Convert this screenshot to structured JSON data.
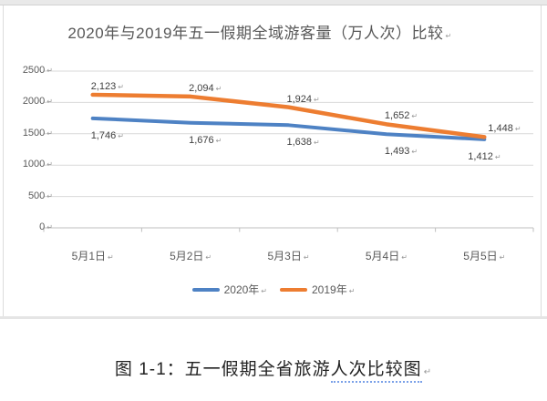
{
  "marks": {
    "pilcrow": "↵"
  },
  "caption": {
    "prefix": "图 1-1：五一假期全省旅游",
    "underlined": "人次比较图"
  },
  "chart_data": {
    "type": "line",
    "title": "2020年与2019年五一假期全域游客量（万人次）比较",
    "categories": [
      "5月1日",
      "5月2日",
      "5月3日",
      "5月4日",
      "5月5日"
    ],
    "series": [
      {
        "name": "2020年",
        "color": "#4e82c4",
        "values": [
          1746,
          1676,
          1638,
          1493,
          1412
        ]
      },
      {
        "name": "2019年",
        "color": "#ed7d31",
        "values": [
          2123,
          2094,
          1924,
          1652,
          1448
        ]
      }
    ],
    "y_ticks": [
      0,
      500,
      1000,
      1500,
      2000,
      2500
    ],
    "ylim": [
      0,
      2500
    ],
    "grid": true,
    "data_labels": true,
    "legend_position": "bottom",
    "colors": {
      "gridline": "#d9d9d9",
      "axis": "#bfbfbf",
      "axis_text": "#595959",
      "data_label_text": "#3f3f3f"
    }
  }
}
